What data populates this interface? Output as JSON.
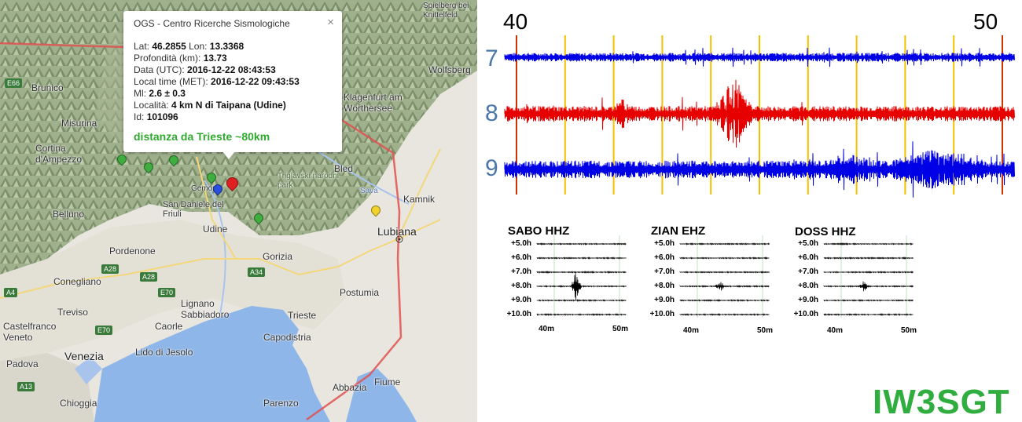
{
  "popup": {
    "title": "OGS - Centro Ricerche Sismologiche",
    "close": "×",
    "lat_label": "Lat:",
    "lat": "46.2855",
    "lon_label": "Lon:",
    "lon": "13.3368",
    "depth_label": "Profondità (km):",
    "depth": "13.73",
    "date_label": "Data (UTC):",
    "date": "2016-12-22 08:43:53",
    "local_label": "Local time (MET):",
    "local": "2016-12-22 09:43:53",
    "ml_label": "Ml:",
    "ml": "2.6 ± 0.3",
    "loc_label": "Località:",
    "loc": "4 km N di Taipana (Udine)",
    "id_label": "Id:",
    "id": "101096",
    "distance": "distanza da Trieste ~80km"
  },
  "map": {
    "places": [
      "Brunico",
      "Misurina",
      "Cortina d'Ampezzo",
      "Belluno",
      "Pordenone",
      "Conegliano",
      "Treviso",
      "Castelfranco Veneto",
      "Padova",
      "Venezia",
      "Chioggia",
      "Lido di Jesolo",
      "Caorle",
      "Lignano Sabbiadoro",
      "Udine",
      "Gemona",
      "San Daniele del Friuli",
      "Gorizia",
      "Trieste",
      "Capodistria",
      "Postumia",
      "Lubiana",
      "Kamnik",
      "Bled",
      "Klagenfurt am Wörthersee",
      "Wolfsberg",
      "Spielberg bei Knittelfeld",
      "Triglavski narodni park",
      "Abbazia",
      "Fiume",
      "Parenzo",
      "Sava"
    ],
    "roads": [
      "E66",
      "A28",
      "A28",
      "E70",
      "A34",
      "E70",
      "A13",
      "A4"
    ]
  },
  "seismogram": {
    "minute_start": "40",
    "minute_end": "50",
    "rows": [
      "7",
      "8",
      "9"
    ],
    "colors": {
      "blue": "#0000e6",
      "red": "#e60000",
      "marker": "#f2c200",
      "hour_line": "#cc3300"
    }
  },
  "stations": [
    {
      "name": "SABO HHZ",
      "event_pos": 0.44,
      "amp": 1.0
    },
    {
      "name": "ZIAN EHZ",
      "event_pos": 0.45,
      "amp": 0.35
    },
    {
      "name": "DOSS HHZ",
      "event_pos": 0.45,
      "amp": 0.3
    }
  ],
  "station_rows": [
    "+5.0h",
    "+6.0h",
    "+7.0h",
    "+8.0h",
    "+9.0h",
    "+10.0h"
  ],
  "station_x": [
    "40m",
    "50m"
  ],
  "callsign": "IW3SGT"
}
